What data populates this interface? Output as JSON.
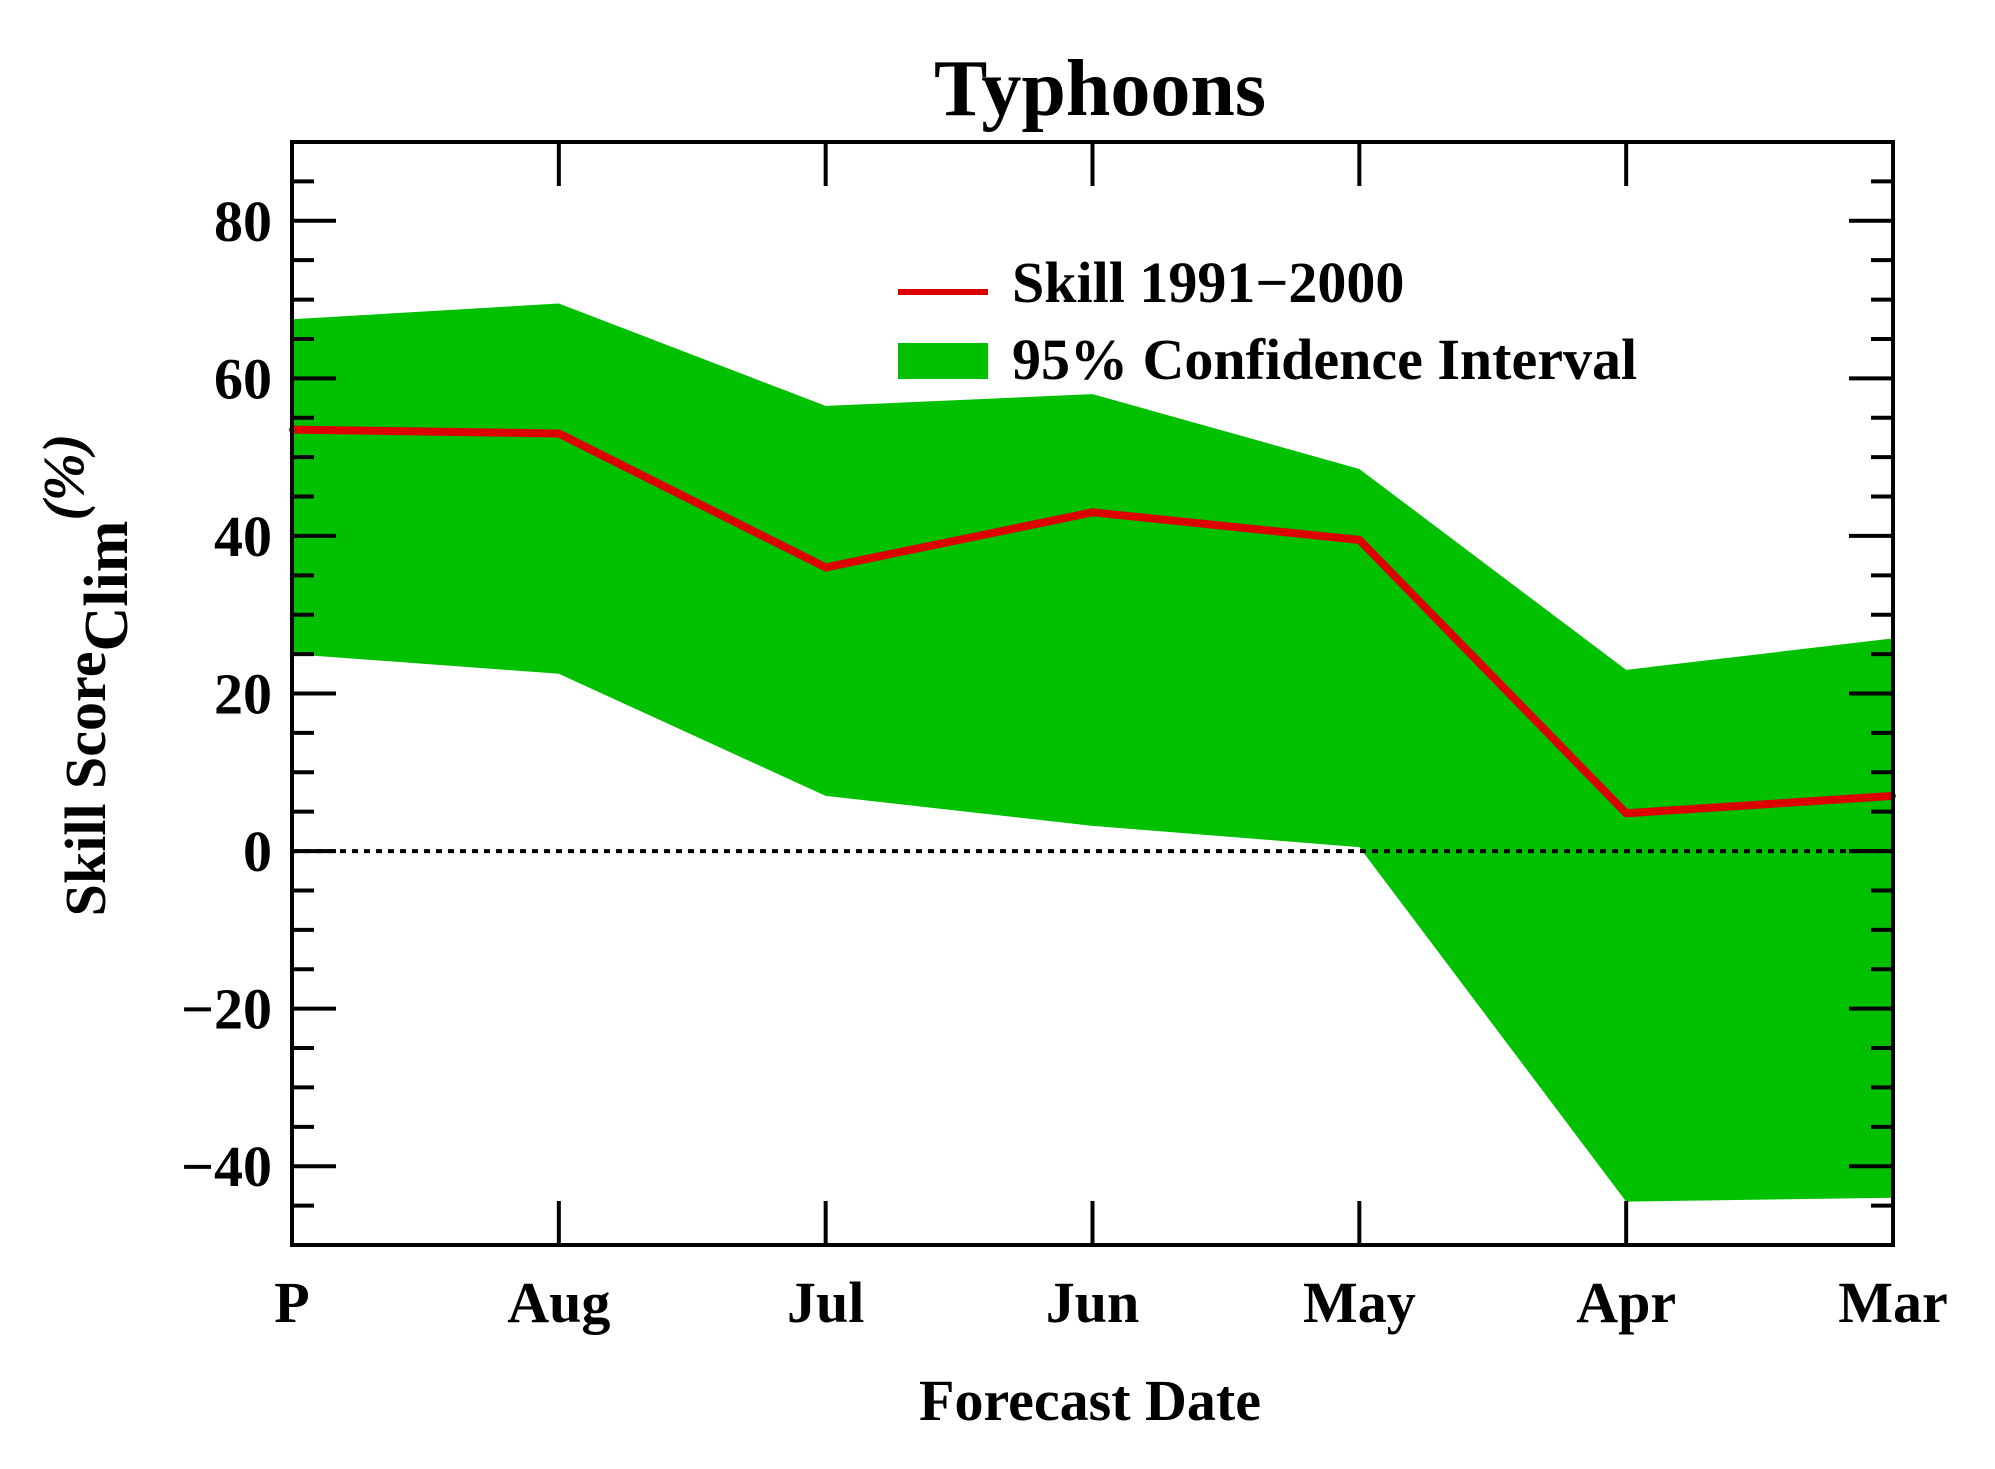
{
  "chart_data": {
    "type": "line",
    "title": "Typhoons",
    "xlabel": "Forecast Date",
    "ylabel": {
      "main": "Skill Score",
      "subscript": "Clim",
      "unit": "(%)"
    },
    "categories": [
      "P",
      "Aug",
      "Jul",
      "Jun",
      "May",
      "Apr",
      "Mar"
    ],
    "ylim": [
      -50,
      90
    ],
    "yticks": [
      {
        "value": -40,
        "label": "−40"
      },
      {
        "value": -20,
        "label": "−20"
      },
      {
        "value": 0,
        "label": "0"
      },
      {
        "value": 20,
        "label": "20"
      },
      {
        "value": 40,
        "label": "40"
      },
      {
        "value": 60,
        "label": "60"
      },
      {
        "value": 80,
        "label": "80"
      }
    ],
    "series": [
      {
        "name": "Skill 1991−2000",
        "kind": "line",
        "color": "#dd0000",
        "values": [
          53.5,
          53,
          36,
          43,
          39.5,
          4.8,
          7
        ]
      },
      {
        "name": "95% Confidence Interval",
        "kind": "band",
        "color": "#00c000",
        "upper": [
          67.5,
          69.5,
          56.5,
          58,
          48.5,
          23,
          27
        ],
        "lower": [
          25,
          22.5,
          7,
          3.2,
          0.5,
          -44.5,
          -44
        ]
      }
    ],
    "reference_line": {
      "y": 0,
      "style": "dotted"
    },
    "legend_position": "top-right",
    "grid": false
  }
}
